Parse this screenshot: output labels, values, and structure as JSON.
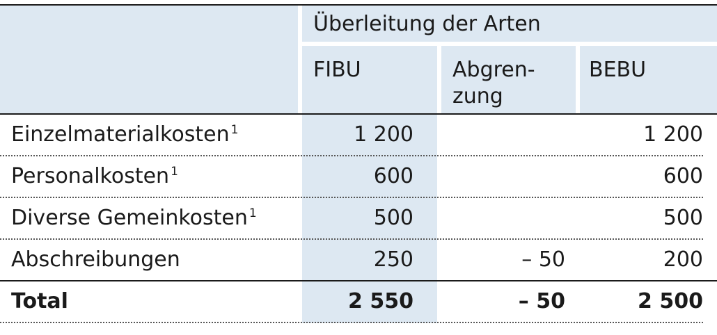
{
  "table": {
    "group_header": "Überleitung der Arten",
    "columns": [
      "FIBU",
      "Abgren-\nzung",
      "BEBU"
    ],
    "rows": [
      {
        "label": "Einzelmaterialkosten",
        "note": "1",
        "fibu": "1 200",
        "abgrenzung": "",
        "bebu": "1 200"
      },
      {
        "label": "Personalkosten",
        "note": "1",
        "fibu": "600",
        "abgrenzung": "",
        "bebu": "600"
      },
      {
        "label": "Diverse Gemeinkosten",
        "note": "1",
        "fibu": "500",
        "abgrenzung": "",
        "bebu": "500"
      },
      {
        "label": "Abschreibungen",
        "note": "",
        "fibu": "250",
        "abgrenzung": "– 50",
        "bebu": "200"
      }
    ],
    "total": {
      "label": "Total",
      "fibu": "2 550",
      "abgrenzung": "– 50",
      "bebu": "2 500"
    }
  },
  "colors": {
    "header_fill": "#dde8f2",
    "fibu_fill": "#dde8f2",
    "rule": "#1a1a1a"
  }
}
